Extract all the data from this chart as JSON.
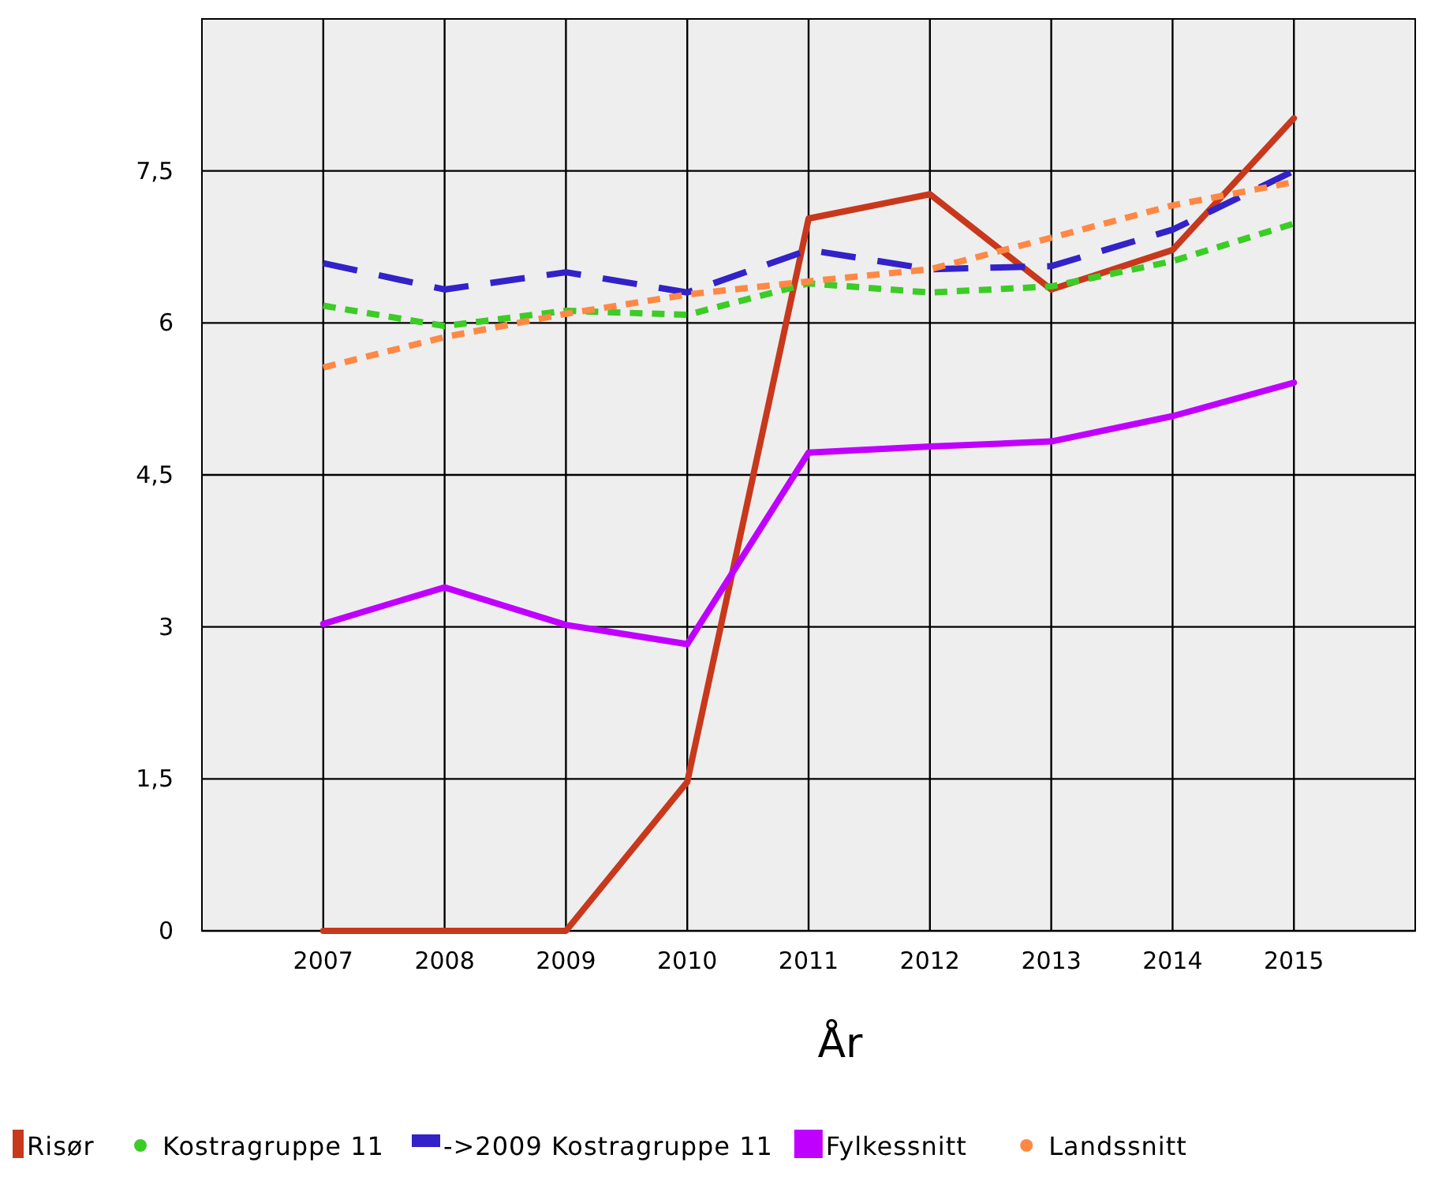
{
  "chart_data": {
    "type": "line",
    "xlabel": "År",
    "x": [
      2007,
      2008,
      2009,
      2010,
      2011,
      2012,
      2013,
      2014,
      2015
    ],
    "xlim": [
      2006,
      2016
    ],
    "xticks": [
      2007,
      2008,
      2009,
      2010,
      2011,
      2012,
      2013,
      2014,
      2015
    ],
    "ylim": [
      0,
      9
    ],
    "yticks": [
      0,
      {
        "value": 1.5,
        "label": "1,5"
      },
      3,
      {
        "value": 4.5,
        "label": "4,5"
      },
      6,
      {
        "value": 7.5,
        "label": "7,5"
      }
    ],
    "grid": true,
    "legend": "bottom",
    "marker": "none",
    "series": [
      {
        "name": "Risør",
        "color": "#c8381c",
        "line_style": "solid",
        "values": [
          0,
          0,
          0,
          1.47,
          7.03,
          7.27,
          6.33,
          6.72,
          8.02
        ]
      },
      {
        "name": "Kostragruppe 11",
        "color": "#3ccc26",
        "line_style": "dotted",
        "values": [
          6.17,
          5.97,
          6.12,
          6.08,
          6.39,
          6.3,
          6.36,
          6.61,
          6.98
        ]
      },
      {
        "name": "->2009 Kostragruppe 11",
        "color": "#3222c8",
        "line_style": "dashed",
        "values": [
          6.59,
          6.33,
          6.5,
          6.3,
          6.72,
          6.53,
          6.56,
          6.92,
          7.5
        ]
      },
      {
        "name": "Fylkessnitt",
        "color": "#c000ff",
        "line_style": "solid",
        "values": [
          3.03,
          3.39,
          3.02,
          2.83,
          4.72,
          4.78,
          4.83,
          5.08,
          5.41
        ]
      },
      {
        "name": "Landssnitt",
        "color": "#ff8844",
        "line_style": "dotted",
        "values": [
          5.56,
          5.86,
          6.09,
          6.28,
          6.41,
          6.53,
          6.84,
          7.16,
          7.39
        ]
      }
    ]
  }
}
